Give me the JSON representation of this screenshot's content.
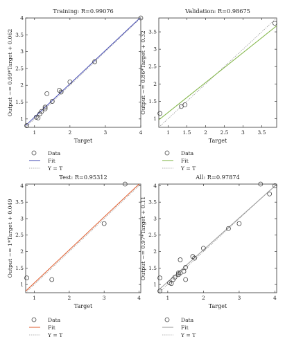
{
  "chart_data": [
    {
      "type": "scatter",
      "title": "Training: R=0.99076",
      "xlabel": "Target",
      "ylabel": "Output ~= 0.99*Target + 0.062",
      "xlim": [
        0.75,
        4.0
      ],
      "ylim": [
        0.75,
        4.0
      ],
      "xticks": [
        1,
        2,
        3,
        4
      ],
      "yticks": [
        1,
        1.5,
        2,
        2.5,
        3,
        3.5,
        4
      ],
      "xtick_labels": [
        "1",
        "2",
        "3",
        "4"
      ],
      "ytick_labels": [
        "1",
        "1.5",
        "2",
        "2.5",
        "3",
        "3.5",
        "4"
      ],
      "fit": {
        "slope": 0.99,
        "intercept": 0.062
      },
      "fit_color": "#4f55b8",
      "points": [
        [
          0.78,
          0.8
        ],
        [
          1.05,
          1.05
        ],
        [
          1.1,
          1.03
        ],
        [
          1.15,
          1.15
        ],
        [
          1.2,
          1.22
        ],
        [
          1.3,
          1.3
        ],
        [
          1.3,
          1.35
        ],
        [
          1.35,
          1.75
        ],
        [
          1.5,
          1.52
        ],
        [
          1.7,
          1.85
        ],
        [
          1.75,
          1.8
        ],
        [
          2.0,
          2.1
        ],
        [
          2.7,
          2.7
        ],
        [
          4.0,
          4.0
        ]
      ],
      "legend": [
        "Data",
        "Fit",
        "Y = T"
      ]
    },
    {
      "type": "scatter",
      "title": "Validation: R=0.98675",
      "xlabel": "Target",
      "ylabel": "Output ~= 0.86*Target + 0.32",
      "xlim": [
        0.75,
        3.9
      ],
      "ylim": [
        0.75,
        3.9
      ],
      "xticks": [
        1,
        1.5,
        2,
        2.5,
        3,
        3.5
      ],
      "yticks": [
        1,
        1.5,
        2,
        2.5,
        3,
        3.5
      ],
      "xtick_labels": [
        "1",
        "1.5",
        "2",
        "2.5",
        "3",
        "3.5"
      ],
      "ytick_labels": [
        "1",
        "1.5",
        "2",
        "2.5",
        "3",
        "3.5"
      ],
      "fit": {
        "slope": 0.86,
        "intercept": 0.32
      },
      "fit_color": "#86b84e",
      "points": [
        [
          0.78,
          1.15
        ],
        [
          1.35,
          1.35
        ],
        [
          1.45,
          1.4
        ],
        [
          3.85,
          3.75
        ]
      ],
      "legend": [
        "Data",
        "Fit",
        "Y = T"
      ]
    },
    {
      "type": "scatter",
      "title": "Test: R=0.95312",
      "xlabel": "Target",
      "ylabel": "Output ~= 1*Target + 0.049",
      "xlim": [
        0.75,
        4.05
      ],
      "ylim": [
        0.75,
        4.05
      ],
      "xticks": [
        1,
        2,
        3,
        4
      ],
      "yticks": [
        1,
        1.5,
        2,
        2.5,
        3,
        3.5,
        4
      ],
      "xtick_labels": [
        "1",
        "2",
        "3",
        "4"
      ],
      "ytick_labels": [
        "1",
        "1.5",
        "2",
        "2.5",
        "3",
        "3.5",
        "4"
      ],
      "fit": {
        "slope": 1.0,
        "intercept": 0.049
      },
      "fit_color": "#e2683c",
      "points": [
        [
          0.78,
          1.2
        ],
        [
          1.5,
          1.15
        ],
        [
          3.0,
          2.85
        ],
        [
          3.6,
          4.05
        ]
      ],
      "legend": [
        "Data",
        "Fit",
        "Y = T"
      ]
    },
    {
      "type": "scatter",
      "title": "All: R=0.97874",
      "xlabel": "Target",
      "ylabel": "Output ~= 0.97*Target + 0.11",
      "xlim": [
        0.75,
        4.05
      ],
      "ylim": [
        0.75,
        4.05
      ],
      "xticks": [
        1,
        2,
        3,
        4
      ],
      "yticks": [
        1,
        1.5,
        2,
        2.5,
        3,
        3.5,
        4
      ],
      "xtick_labels": [
        "1",
        "2",
        "3",
        "4"
      ],
      "ytick_labels": [
        "1",
        "1.5",
        "2",
        "2.5",
        "3",
        "3.5",
        "4"
      ],
      "fit": {
        "slope": 0.97,
        "intercept": 0.11
      },
      "fit_color": "#9e9e9e",
      "points": [
        [
          0.78,
          0.8
        ],
        [
          0.78,
          1.2
        ],
        [
          1.05,
          1.05
        ],
        [
          1.1,
          1.03
        ],
        [
          1.15,
          1.15
        ],
        [
          1.2,
          1.22
        ],
        [
          1.3,
          1.3
        ],
        [
          1.3,
          1.35
        ],
        [
          1.35,
          1.75
        ],
        [
          1.35,
          1.35
        ],
        [
          1.45,
          1.4
        ],
        [
          1.5,
          1.15
        ],
        [
          1.5,
          1.52
        ],
        [
          1.7,
          1.85
        ],
        [
          1.75,
          1.8
        ],
        [
          2.0,
          2.1
        ],
        [
          2.7,
          2.7
        ],
        [
          3.0,
          2.85
        ],
        [
          3.6,
          4.05
        ],
        [
          3.85,
          3.75
        ],
        [
          4.0,
          4.0
        ]
      ],
      "legend": [
        "Data",
        "Fit",
        "Y = T"
      ]
    }
  ]
}
